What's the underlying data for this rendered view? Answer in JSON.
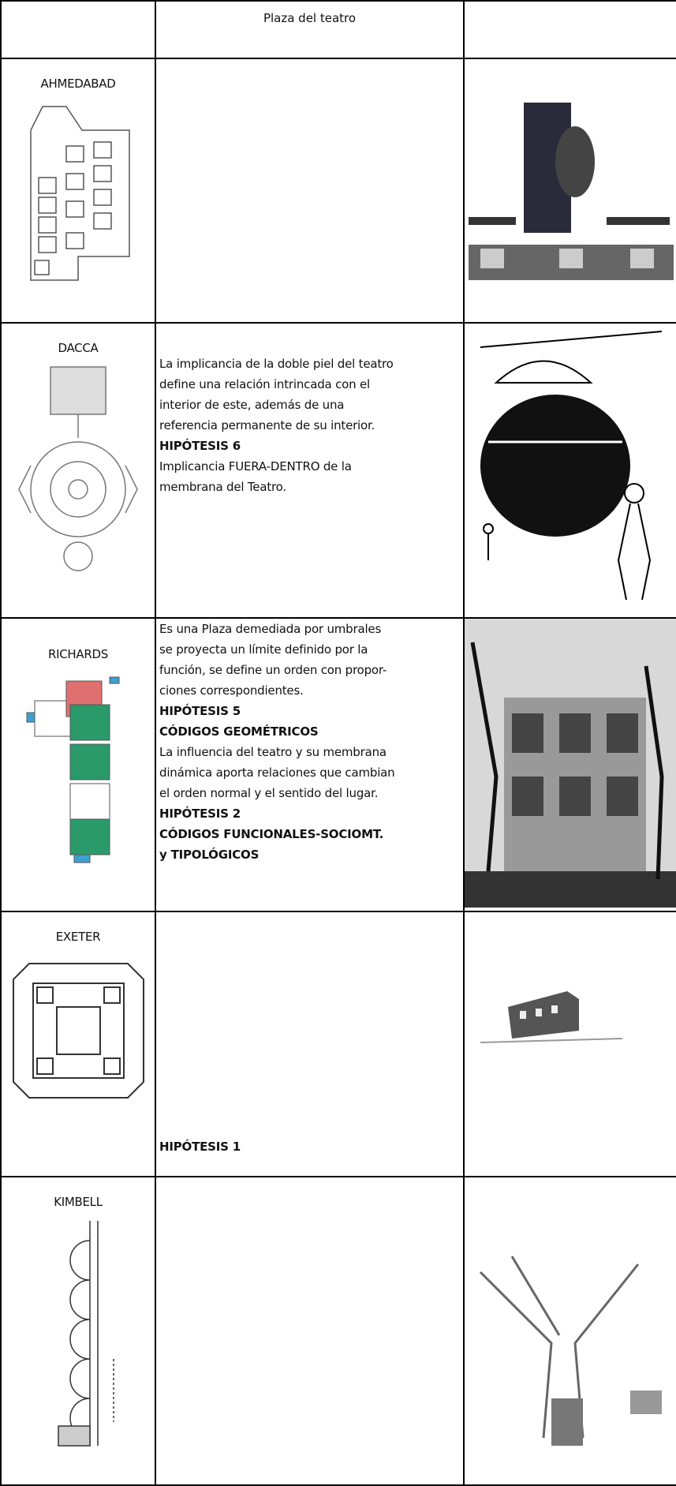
{
  "table": {
    "header": [
      "",
      "Plaza del teatro",
      ""
    ],
    "rows": [
      {
        "name": "AHMEDABAD",
        "lines": []
      },
      {
        "name": "DACCA",
        "lines": [
          {
            "text": "La implicancia de la doble piel del teatro",
            "bold": false
          },
          {
            "text": "define una relación intrincada con el",
            "bold": false
          },
          {
            "text": "interior de este, además de una",
            "bold": false
          },
          {
            "text": "referencia permanente de su interior.",
            "bold": false
          },
          {
            "text": "HIPÓTESIS 6",
            "bold": true
          },
          {
            "text": "Implicancia FUERA-DENTRO de la",
            "bold": false
          },
          {
            "text": "membrana del Teatro.",
            "bold": false
          }
        ]
      },
      {
        "name": "RICHARDS",
        "lines": [
          {
            "text": "Es una  Plaza demediada por umbrales",
            "bold": false
          },
          {
            "text": "se proyecta un límite definido por la",
            "bold": false
          },
          {
            "text": "función, se define un orden con propor-",
            "bold": false
          },
          {
            "text": "ciones correspondientes.",
            "bold": false
          },
          {
            "text": "HIPÓTESIS 5",
            "bold": true
          },
          {
            "text": "CÓDIGOS GEOMÉTRICOS",
            "bold": true
          },
          {
            "text": "La influencia del teatro y su membrana",
            "bold": false
          },
          {
            "text": "dinámica aporta relaciones que cambian",
            "bold": false
          },
          {
            "text": "el orden normal y el sentido del lugar.",
            "bold": false
          },
          {
            "text": "HIPÓTESIS 2",
            "bold": true
          },
          {
            "text": "CÓDIGOS FUNCIONALES-SOCIOMT.",
            "bold": true
          },
          {
            "text": "y TIPOLÓGICOS",
            "bold": true
          }
        ]
      },
      {
        "name": "EXETER",
        "lines": [
          {
            "text": "HIPÓTESIS 1",
            "bold": true
          }
        ]
      },
      {
        "name": "KIMBELL",
        "lines": []
      }
    ]
  }
}
